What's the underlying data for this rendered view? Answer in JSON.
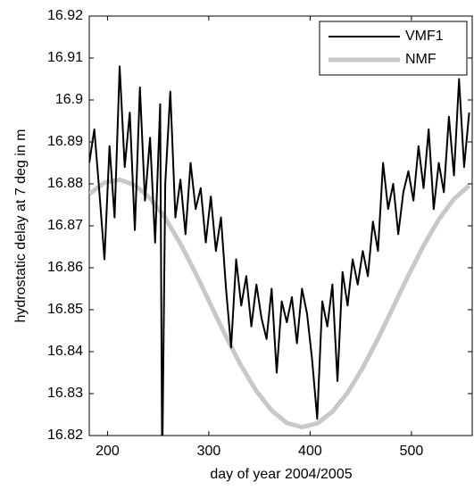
{
  "chart_data": {
    "type": "line",
    "xlabel": "day of year 2004/2005",
    "ylabel": "hydrostatic delay at 7 deg in m",
    "xlim": [
      182,
      560
    ],
    "ylim": [
      16.82,
      16.92
    ],
    "xticks": [
      200,
      300,
      400,
      500
    ],
    "yticks": [
      16.82,
      16.83,
      16.84,
      16.85,
      16.86,
      16.87,
      16.88,
      16.89,
      16.9,
      16.91,
      16.92
    ],
    "legend": "upper right",
    "series": [
      {
        "name": "VMF1",
        "color": "#000000",
        "width": 2,
        "x": [
          182,
          187,
          192,
          197,
          202,
          207,
          212,
          217,
          222,
          227,
          232,
          237,
          242,
          247,
          252,
          254,
          257,
          262,
          267,
          272,
          277,
          282,
          287,
          292,
          297,
          302,
          307,
          312,
          317,
          322,
          327,
          332,
          337,
          342,
          347,
          352,
          357,
          362,
          367,
          372,
          377,
          382,
          387,
          392,
          397,
          402,
          407,
          412,
          417,
          422,
          427,
          432,
          437,
          442,
          447,
          452,
          457,
          462,
          467,
          472,
          477,
          482,
          487,
          492,
          497,
          502,
          507,
          512,
          517,
          522,
          527,
          532,
          537,
          542,
          547,
          552,
          557
        ],
        "values": [
          16.885,
          16.893,
          16.878,
          16.862,
          16.889,
          16.872,
          16.908,
          16.884,
          16.897,
          16.869,
          16.903,
          16.876,
          16.891,
          16.866,
          16.899,
          16.812,
          16.88,
          16.902,
          16.872,
          16.881,
          16.868,
          16.885,
          16.874,
          16.879,
          16.866,
          16.877,
          16.864,
          16.872,
          16.855,
          16.841,
          16.862,
          16.851,
          16.858,
          16.846,
          16.856,
          16.848,
          16.843,
          16.855,
          16.835,
          16.852,
          16.847,
          16.853,
          16.842,
          16.855,
          16.849,
          16.838,
          16.824,
          16.852,
          16.846,
          16.856,
          16.833,
          16.859,
          16.851,
          16.862,
          16.856,
          16.864,
          16.858,
          16.871,
          16.864,
          16.885,
          16.874,
          16.88,
          16.868,
          16.878,
          16.883,
          16.876,
          16.889,
          16.879,
          16.893,
          16.874,
          16.885,
          16.878,
          16.896,
          16.882,
          16.905,
          16.884,
          16.897
        ]
      },
      {
        "name": "NMF",
        "color": "#c8c8c8",
        "width": 5,
        "x": [
          182,
          197,
          212,
          227,
          242,
          257,
          272,
          287,
          302,
          317,
          332,
          347,
          362,
          377,
          392,
          407,
          422,
          437,
          452,
          467,
          482,
          497,
          512,
          527,
          542,
          557
        ],
        "values": [
          16.8776,
          16.8803,
          16.881,
          16.8797,
          16.8766,
          16.8719,
          16.8657,
          16.8587,
          16.8511,
          16.8436,
          16.8366,
          16.8306,
          16.826,
          16.823,
          16.822,
          16.8229,
          16.8257,
          16.8302,
          16.8362,
          16.8431,
          16.8506,
          16.8582,
          16.8653,
          16.8715,
          16.8764,
          16.8796
        ]
      }
    ]
  }
}
